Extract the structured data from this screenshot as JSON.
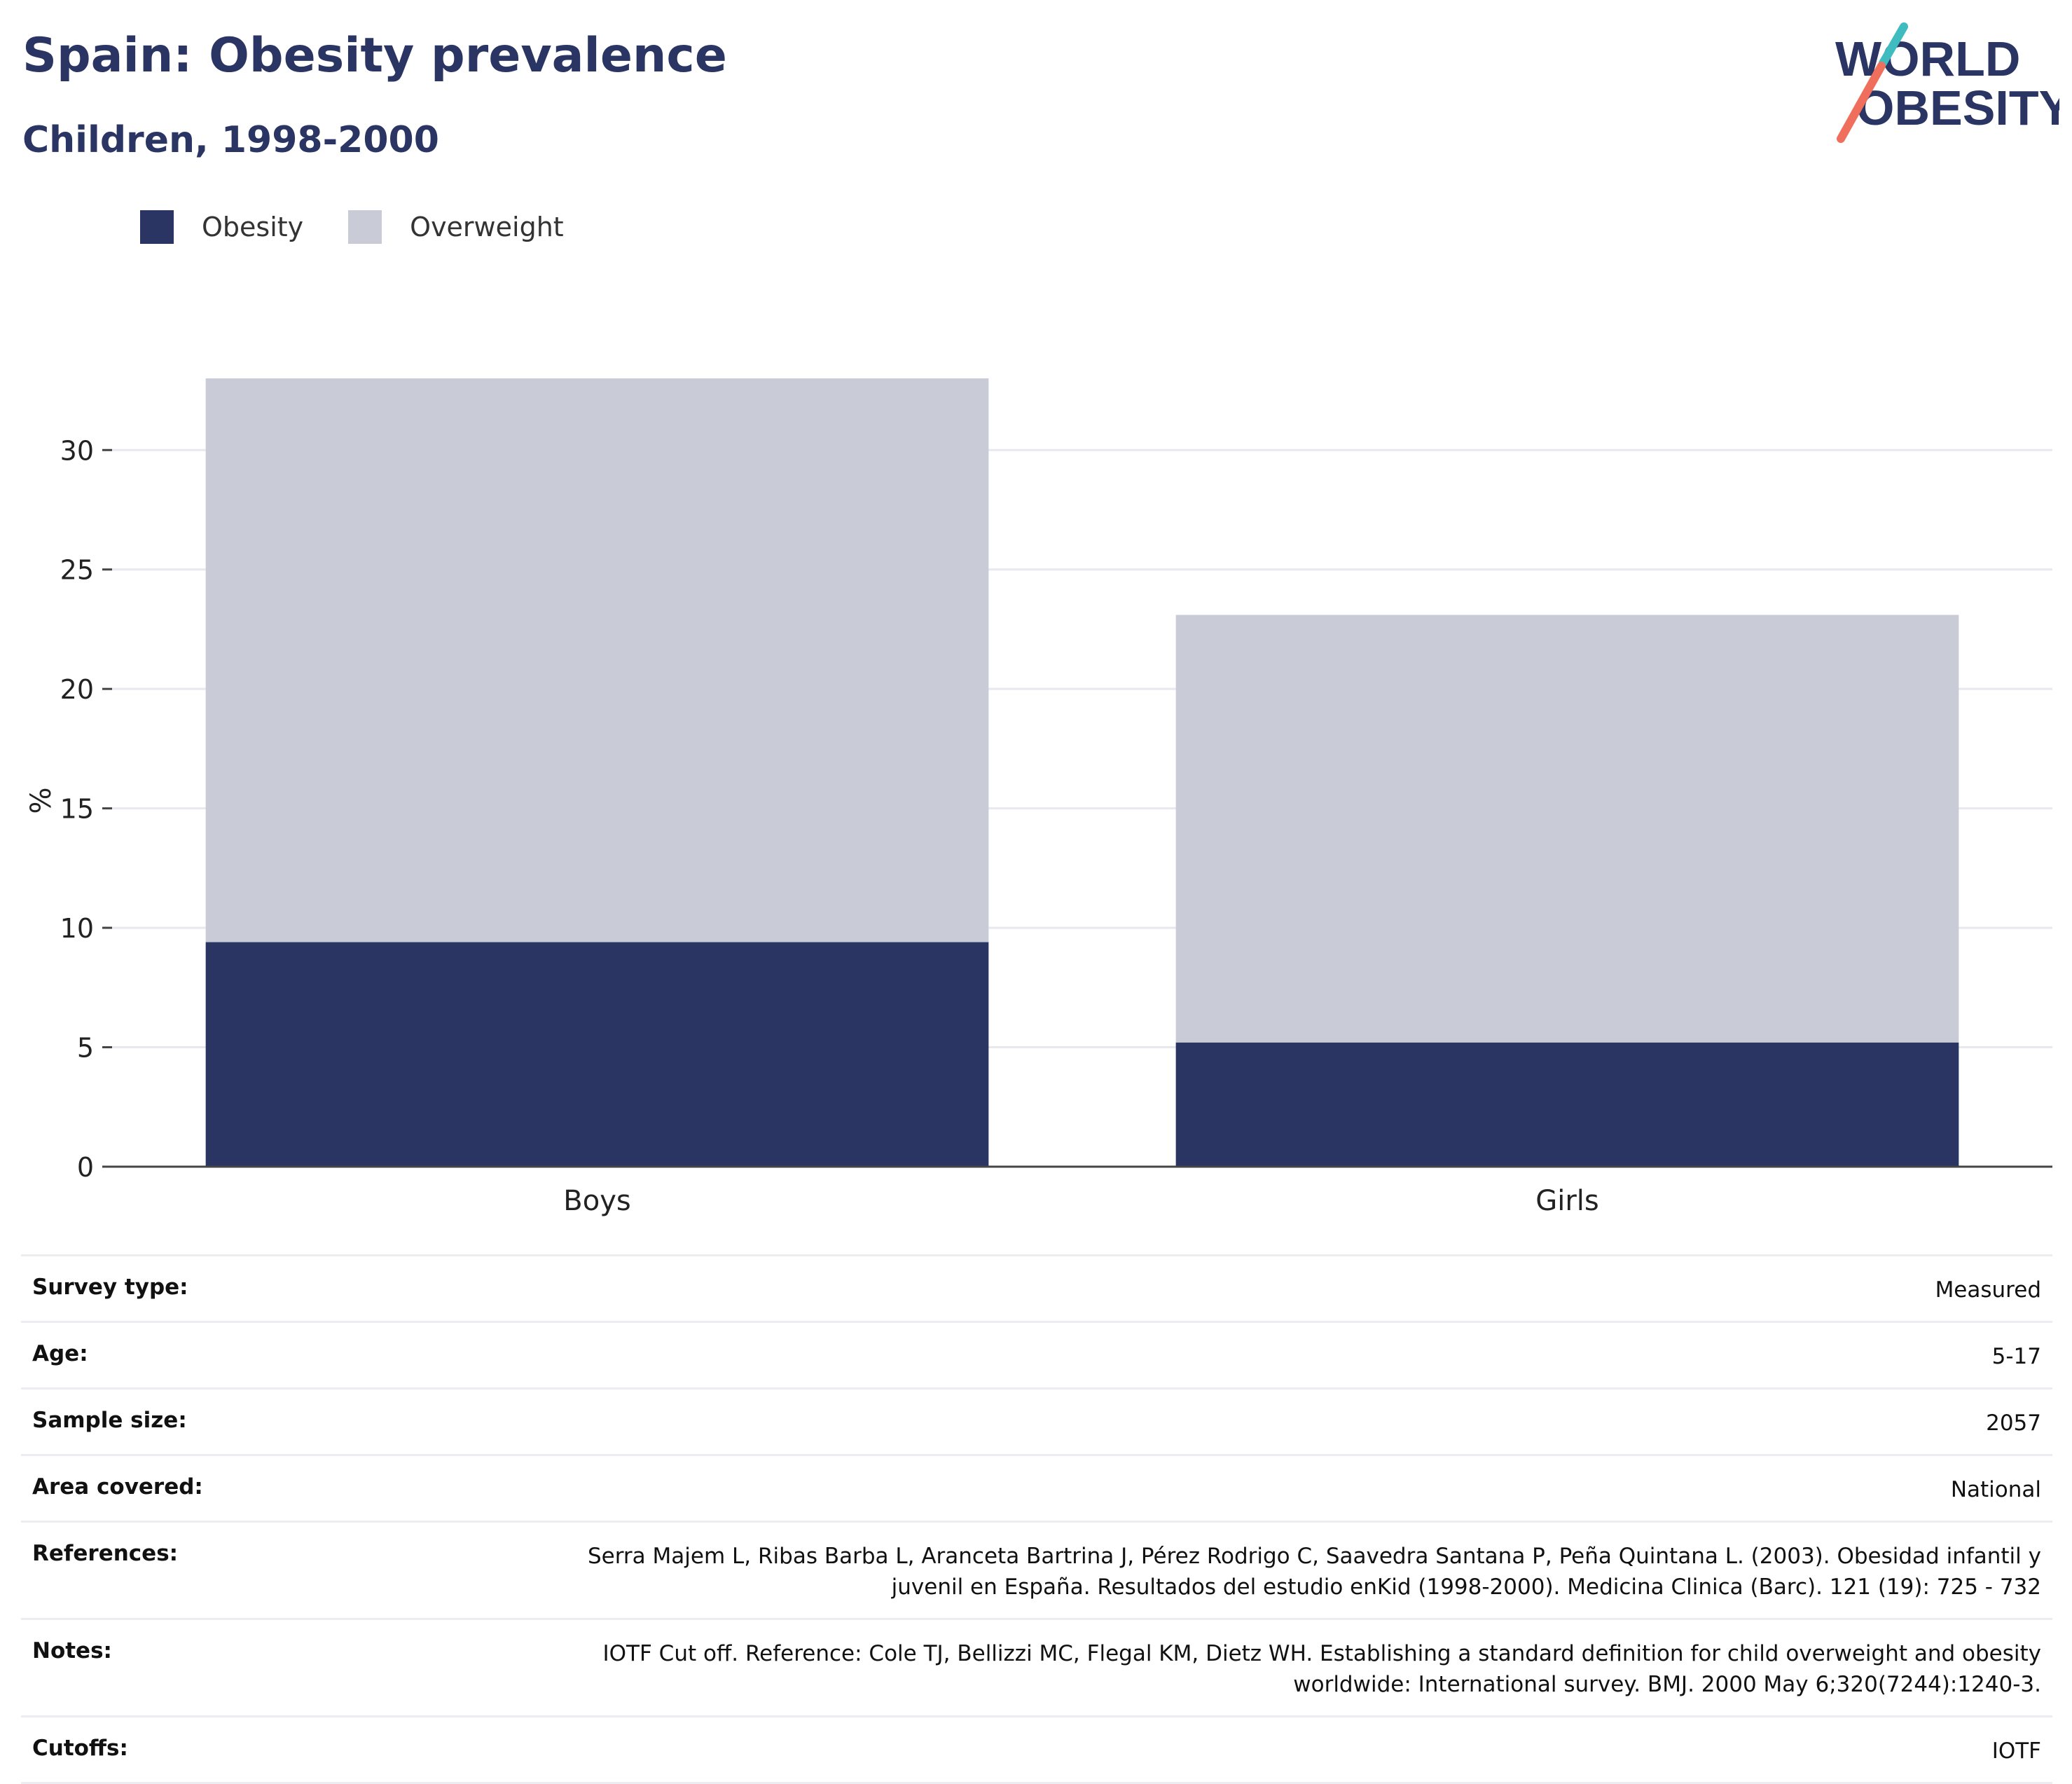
{
  "header": {
    "title": "Spain: Obesity prevalence",
    "subtitle": "Children, 1998-2000"
  },
  "logo": {
    "line1": "WORLD",
    "line2": "OBESITY",
    "accent_teal": "#3fbcc0",
    "accent_coral": "#ef6f5c"
  },
  "colors": {
    "obesity": "#2a3563",
    "overweight": "#c9ccd7"
  },
  "chart_data": {
    "type": "bar",
    "stacked": true,
    "categories": [
      "Boys",
      "Girls"
    ],
    "series": [
      {
        "name": "Obesity",
        "values": [
          9.4,
          5.2
        ]
      },
      {
        "name": "Overweight",
        "values": [
          23.6,
          17.9
        ]
      }
    ],
    "ylabel": "%",
    "ylim": [
      0,
      33
    ],
    "yticks": [
      0,
      5,
      10,
      15,
      20,
      25,
      30
    ],
    "grid": true,
    "legend": "top-left"
  },
  "meta": [
    {
      "label": "Survey type:",
      "value": "Measured"
    },
    {
      "label": "Age:",
      "value": "5-17"
    },
    {
      "label": "Sample size:",
      "value": "2057"
    },
    {
      "label": "Area covered:",
      "value": "National"
    },
    {
      "label": "References:",
      "value": "Serra Majem L, Ribas Barba L, Aranceta Bartrina J, Pérez Rodrigo C, Saavedra Santana P, Peña Quintana L. (2003). Obesidad infantil y juvenil en España. Resultados del estudio enKid (1998-2000). Medicina Clinica (Barc). 121 (19): 725 - 732"
    },
    {
      "label": "Notes:",
      "value": "IOTF Cut off. Reference: Cole TJ, Bellizzi MC, Flegal KM, Dietz WH. Establishing a standard definition for child overweight and obesity worldwide: International survey. BMJ. 2000 May 6;320(7244):1240-3."
    },
    {
      "label": "Cutoffs:",
      "value": "IOTF"
    }
  ]
}
